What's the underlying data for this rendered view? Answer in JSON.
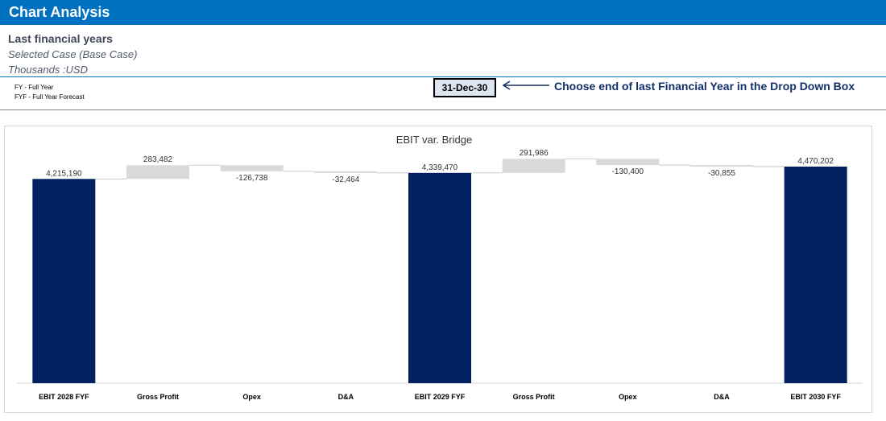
{
  "header": {
    "title": "Chart Analysis"
  },
  "subtitle": {
    "line1": "Last financial years",
    "line2": "Selected Case (Base Case)",
    "line3": "Thousands :USD"
  },
  "legend_notes": {
    "fy": "FY - Full Year",
    "fyf": "FYF - Full Year Forecast"
  },
  "date_selector": {
    "value": "31-Dec-30"
  },
  "instruction": "Choose end of last Financial Year in the Drop Down Box",
  "colors": {
    "header": "#0070c0",
    "total_bar": "#002060",
    "delta_bar": "#d9d9d9"
  },
  "chart_data": {
    "type": "bar",
    "subtype": "waterfall",
    "title": "EBIT var. Bridge",
    "categories": [
      "EBIT 2028 FYF",
      "Gross Profit",
      "Opex",
      "D&A",
      "EBIT 2029 FYF",
      "Gross Profit",
      "Opex",
      "D&A",
      "EBIT 2030 FYF"
    ],
    "values": [
      4215190,
      283482,
      -126738,
      -32464,
      4339470,
      291986,
      -130400,
      -30855,
      4470202
    ],
    "labels": [
      "4,215,190",
      "283,482",
      "-126,738",
      "-32,464",
      "4,339,470",
      "291,986",
      "-130,400",
      "-30,855",
      "4,470,202"
    ],
    "kinds": [
      "total",
      "delta",
      "delta",
      "delta",
      "total",
      "delta",
      "delta",
      "delta",
      "total"
    ],
    "ylim": [
      0,
      5300000
    ],
    "grid": false,
    "legend": "none"
  }
}
